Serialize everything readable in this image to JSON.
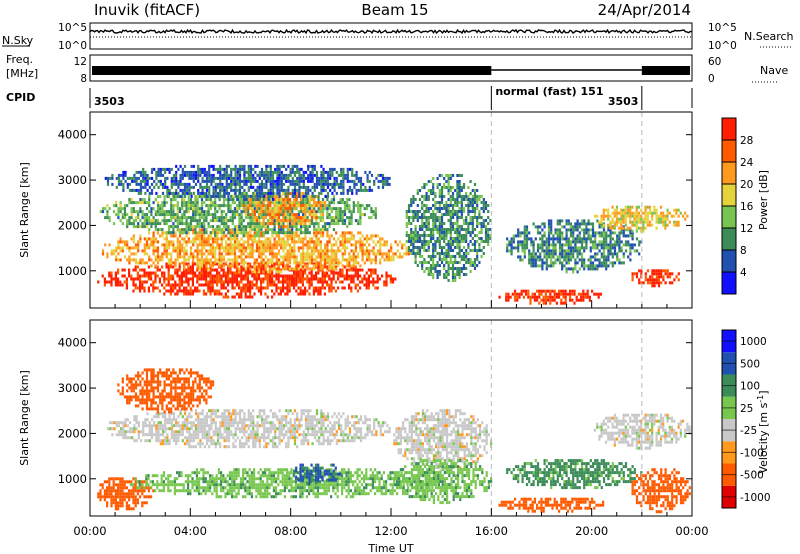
{
  "header": {
    "station": "Inuvik (fitACF)",
    "beam": "Beam 15",
    "date": "24/Apr/2014"
  },
  "top_panels": {
    "nsky_label": "N.Sky",
    "nsky_tick_top": "10^5",
    "nsky_tick_bottom": "10^0",
    "nsearch_label": "N.Search",
    "nsearch_tick_top": "10^5",
    "nsearch_tick_bottom": "10^0",
    "freq_label_1": "Freq.",
    "freq_label_2": "[MHz]",
    "freq_tick_top": "12",
    "freq_tick_bottom": "8",
    "nave_label": "Nave",
    "nave_tick_top": "60",
    "nave_tick_bottom": "0",
    "cpid_label": "CPID",
    "cpid_segments": [
      {
        "text": "3503",
        "start_hour": 0
      },
      {
        "text": "normal (fast) 151",
        "start_hour": 16
      },
      {
        "text": "3503",
        "start_hour": 22
      }
    ]
  },
  "colors": {
    "power": [
      "#1010ff",
      "#2050b0",
      "#3c8c5a",
      "#78c450",
      "#e6d23c",
      "#ff9a1e",
      "#ff5a00",
      "#ff1e00"
    ],
    "velocity": [
      "#e00000",
      "#ff5a00",
      "#ff9a1e",
      "#c8c8c8",
      "#78c850",
      "#3c8c5a",
      "#2050b0",
      "#1010ff"
    ],
    "grid_dashes": "#bbbbbb"
  },
  "chart_data": [
    {
      "type": "heatmap",
      "title": "Power",
      "xlabel": "",
      "ylabel": "Slant Range [km]",
      "xlim": [
        0,
        24
      ],
      "ylim": [
        180,
        4500
      ],
      "y_ticks": [
        "1000",
        "2000",
        "3000",
        "4000"
      ],
      "colorbar_label": "Power [dB]",
      "colorbar_ticks": [
        "4",
        "8",
        "12",
        "16",
        "20",
        "24",
        "28"
      ],
      "colorbar_range": [
        0,
        32
      ],
      "cpid_change_hours": [
        16,
        22
      ],
      "regions": [
        {
          "t": [
            0.2,
            12.2
          ],
          "r": [
            450,
            1250
          ],
          "level": 30
        },
        {
          "t": [
            0.3,
            12.8
          ],
          "r": [
            1000,
            2000
          ],
          "level": 21
        },
        {
          "t": [
            0.3,
            11.5
          ],
          "r": [
            1800,
            2800
          ],
          "level": 12
        },
        {
          "t": [
            6,
            9.5
          ],
          "r": [
            2000,
            2800
          ],
          "level": 22
        },
        {
          "t": [
            0.5,
            12
          ],
          "r": [
            2600,
            3400
          ],
          "level": 7
        },
        {
          "t": [
            12.5,
            16
          ],
          "r": [
            800,
            3200
          ],
          "level": 10
        },
        {
          "t": [
            16.2,
            20.5
          ],
          "r": [
            300,
            650
          ],
          "level": 29
        },
        {
          "t": [
            16.5,
            22
          ],
          "r": [
            1000,
            2200
          ],
          "level": 9
        },
        {
          "t": [
            20,
            23.8
          ],
          "r": [
            1900,
            2500
          ],
          "level": 19
        },
        {
          "t": [
            21.5,
            23.5
          ],
          "r": [
            700,
            1100
          ],
          "level": 30
        }
      ]
    },
    {
      "type": "heatmap",
      "title": "Velocity",
      "xlabel": "Time UT",
      "ylabel": "Slant Range [km]",
      "xlim": [
        0,
        24
      ],
      "ylim": [
        180,
        4500
      ],
      "x_ticks": [
        "00:00",
        "04:00",
        "08:00",
        "12:00",
        "16:00",
        "20:00",
        "00:00"
      ],
      "y_ticks": [
        "1000",
        "2000",
        "3000",
        "4000"
      ],
      "colorbar_label": "Velocity [m s^-1]",
      "colorbar_ticks": [
        "1000",
        "500",
        "100",
        "25",
        "-25",
        "-100",
        "-500",
        "-1000"
      ],
      "cpid_change_hours": [
        16,
        22
      ],
      "regions": [
        {
          "t": [
            0.2,
            2.5
          ],
          "r": [
            350,
            1100
          ],
          "level": -200
        },
        {
          "t": [
            1.5,
            14
          ],
          "r": [
            600,
            1300
          ],
          "level": 80
        },
        {
          "t": [
            8,
            10
          ],
          "r": [
            900,
            1400
          ],
          "level": 600
        },
        {
          "t": [
            0.5,
            12
          ],
          "r": [
            1700,
            2600
          ],
          "level": 0
        },
        {
          "t": [
            12,
            16
          ],
          "r": [
            1200,
            2600
          ],
          "level": 0
        },
        {
          "t": [
            12,
            16
          ],
          "r": [
            500,
            1500
          ],
          "level": 80
        },
        {
          "t": [
            16.2,
            20.5
          ],
          "r": [
            300,
            650
          ],
          "level": -300
        },
        {
          "t": [
            16.5,
            22
          ],
          "r": [
            800,
            1500
          ],
          "level": 150
        },
        {
          "t": [
            20,
            23.9
          ],
          "r": [
            1700,
            2500
          ],
          "level": 0
        },
        {
          "t": [
            21.5,
            23.9
          ],
          "r": [
            300,
            1300
          ],
          "level": -200
        },
        {
          "t": [
            1,
            5
          ],
          "r": [
            2500,
            3500
          ],
          "level": -200
        }
      ]
    }
  ]
}
